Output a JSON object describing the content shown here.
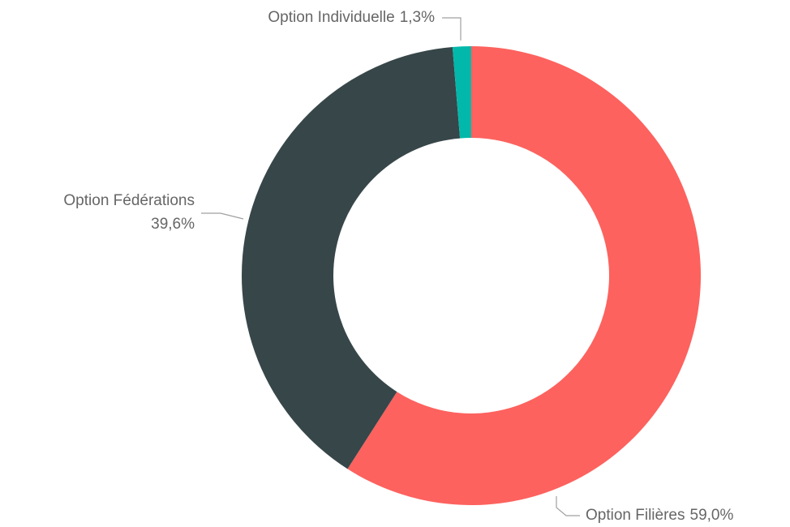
{
  "chart_data": {
    "type": "donut",
    "categories": [
      "Option Filières",
      "Option Fédérations",
      "Option Individuelle"
    ],
    "values": [
      59.0,
      39.6,
      1.3
    ],
    "value_labels": [
      "59,0%",
      "39,6%",
      "1,3%"
    ],
    "colors": [
      "#fd625e",
      "#374649",
      "#01b8aa"
    ]
  }
}
